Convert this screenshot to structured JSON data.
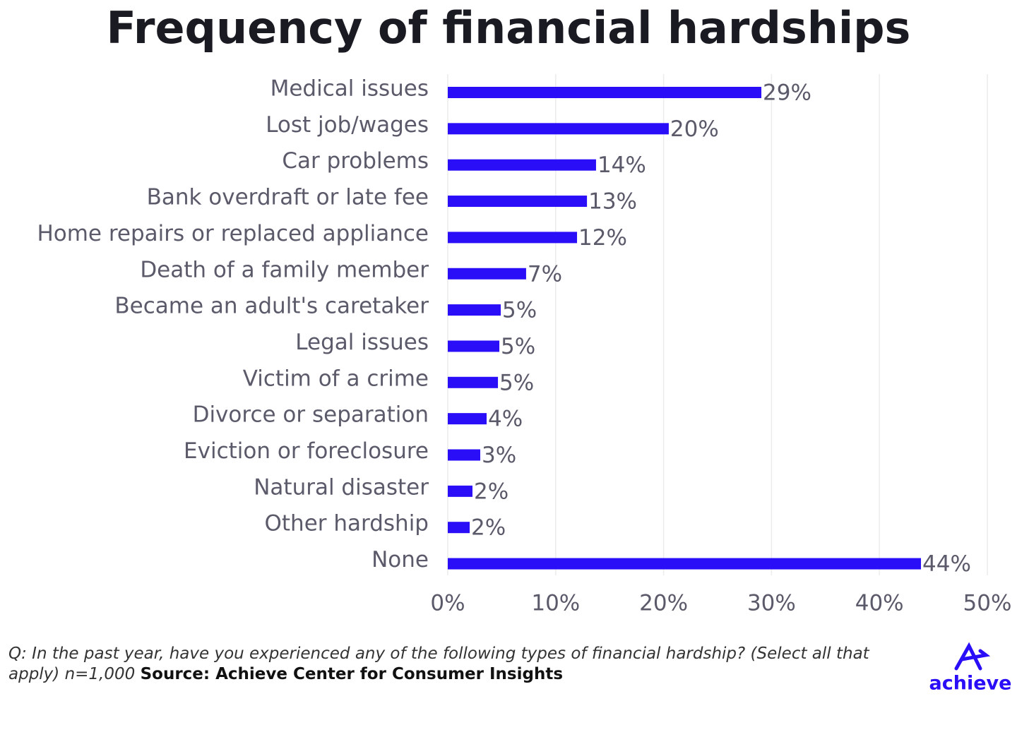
{
  "chart_data": {
    "type": "barh",
    "title": "Frequency of financial hardships",
    "categories": [
      "Medical issues",
      "Lost job/wages",
      "Car problems",
      "Bank overdraft or late fee",
      "Home repairs or replaced appliance",
      "Death of a family member",
      "Became an adult's caretaker",
      "Legal issues",
      "Victim of a crime",
      "Divorce or separation",
      "Eviction or foreclosure",
      "Natural disaster",
      "Other hardship",
      "None"
    ],
    "values": [
      29.06,
      20.48,
      13.74,
      12.9,
      11.98,
      7.26,
      4.91,
      4.78,
      4.65,
      3.6,
      3.01,
      2.29,
      2.03,
      43.85
    ],
    "value_labels": [
      "29%",
      "20%",
      "14%",
      "13%",
      "12%",
      "7%",
      "5%",
      "5%",
      "5%",
      "4%",
      "3%",
      "2%",
      "2%",
      "44%"
    ],
    "color": "#2a0ef7",
    "xlim": [
      0,
      50
    ],
    "xticks": [
      {
        "value": 0,
        "label": "0%"
      },
      {
        "value": 10,
        "label": "10%"
      },
      {
        "value": 20,
        "label": "20%"
      },
      {
        "value": 30,
        "label": "30%"
      },
      {
        "value": 40,
        "label": "40%"
      },
      {
        "value": 50,
        "label": "50%"
      }
    ],
    "grid": true,
    "note": "Q: In the past year, have you experienced any of the following types of financial hardship? (Select all that apply) n=1,000",
    "source": "Source: Achieve Center for Consumer Insights",
    "logo": "achieve"
  }
}
